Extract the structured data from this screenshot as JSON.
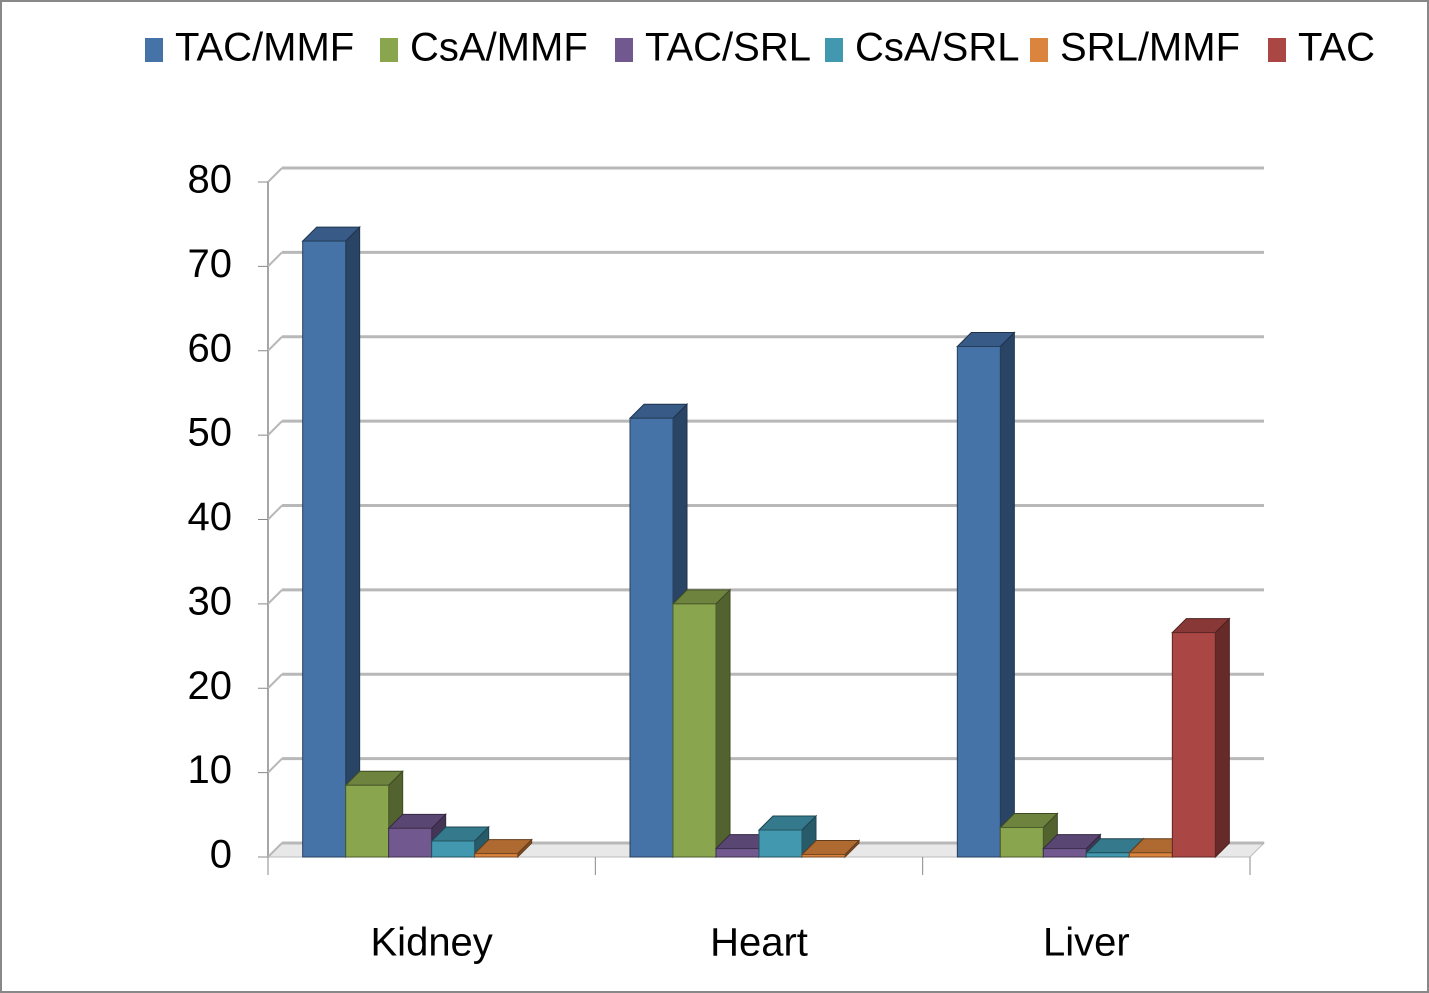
{
  "chart_data": {
    "type": "bar3d",
    "categories": [
      "Kidney",
      "Heart",
      "Liver"
    ],
    "series": [
      {
        "name": "TAC/MMF",
        "color": "#4572a7",
        "values": [
          73,
          52,
          60.5
        ]
      },
      {
        "name": "CsA/MMF",
        "color": "#89a54e",
        "values": [
          8.5,
          30,
          3.5
        ]
      },
      {
        "name": "TAC/SRL",
        "color": "#71588f",
        "values": [
          3.4,
          1,
          1
        ]
      },
      {
        "name": "CsA/SRL",
        "color": "#4198af",
        "values": [
          1.9,
          3.2,
          0.5
        ]
      },
      {
        "name": "SRL/MMF",
        "color": "#db843d",
        "values": [
          0.4,
          0.3,
          0.5
        ]
      },
      {
        "name": "TAC",
        "color": "#aa4643",
        "values": [
          null,
          null,
          26.6
        ]
      }
    ],
    "ylim": [
      0,
      80
    ],
    "yticks": [
      0,
      10,
      20,
      30,
      40,
      50,
      60,
      70,
      80
    ],
    "grid": true,
    "legend": "top"
  }
}
